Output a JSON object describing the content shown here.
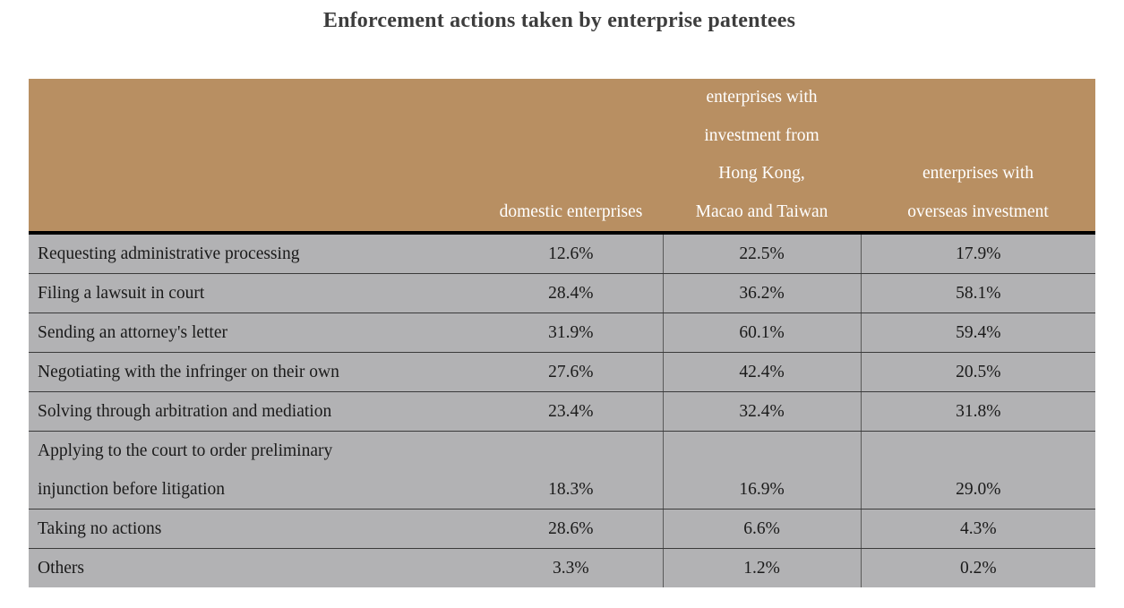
{
  "chart_data": {
    "type": "table",
    "title": "Enforcement actions taken by enterprise patentees",
    "columns": [
      {
        "lines": [
          ""
        ]
      },
      {
        "lines": [
          "domestic enterprises"
        ]
      },
      {
        "lines": [
          "enterprises with",
          "investment from",
          "Hong Kong,",
          "Macao and Taiwan"
        ]
      },
      {
        "lines": [
          "enterprises with",
          "overseas investment"
        ]
      }
    ],
    "rows": [
      {
        "lines": [
          "Requesting administrative processing"
        ],
        "values": [
          "12.6%",
          "22.5%",
          "17.9%"
        ]
      },
      {
        "lines": [
          "Filing a lawsuit in court"
        ],
        "values": [
          "28.4%",
          "36.2%",
          "58.1%"
        ]
      },
      {
        "lines": [
          "Sending an attorney's letter"
        ],
        "values": [
          "31.9%",
          "60.1%",
          "59.4%"
        ]
      },
      {
        "lines": [
          "Negotiating with the infringer on their own"
        ],
        "values": [
          "27.6%",
          "42.4%",
          "20.5%"
        ]
      },
      {
        "lines": [
          "Solving through arbitration and mediation"
        ],
        "values": [
          "23.4%",
          "32.4%",
          "31.8%"
        ]
      },
      {
        "lines": [
          "Applying to the court to order preliminary",
          "injunction before litigation"
        ],
        "values": [
          "18.3%",
          "16.9%",
          "29.0%"
        ]
      },
      {
        "lines": [
          "Taking no actions"
        ],
        "values": [
          "28.6%",
          "6.6%",
          "4.3%"
        ]
      },
      {
        "lines": [
          "Others"
        ],
        "values": [
          "3.3%",
          "1.2%",
          "0.2%"
        ]
      }
    ],
    "header_color": "#b88f62",
    "row_color": "#b2b2b4"
  }
}
